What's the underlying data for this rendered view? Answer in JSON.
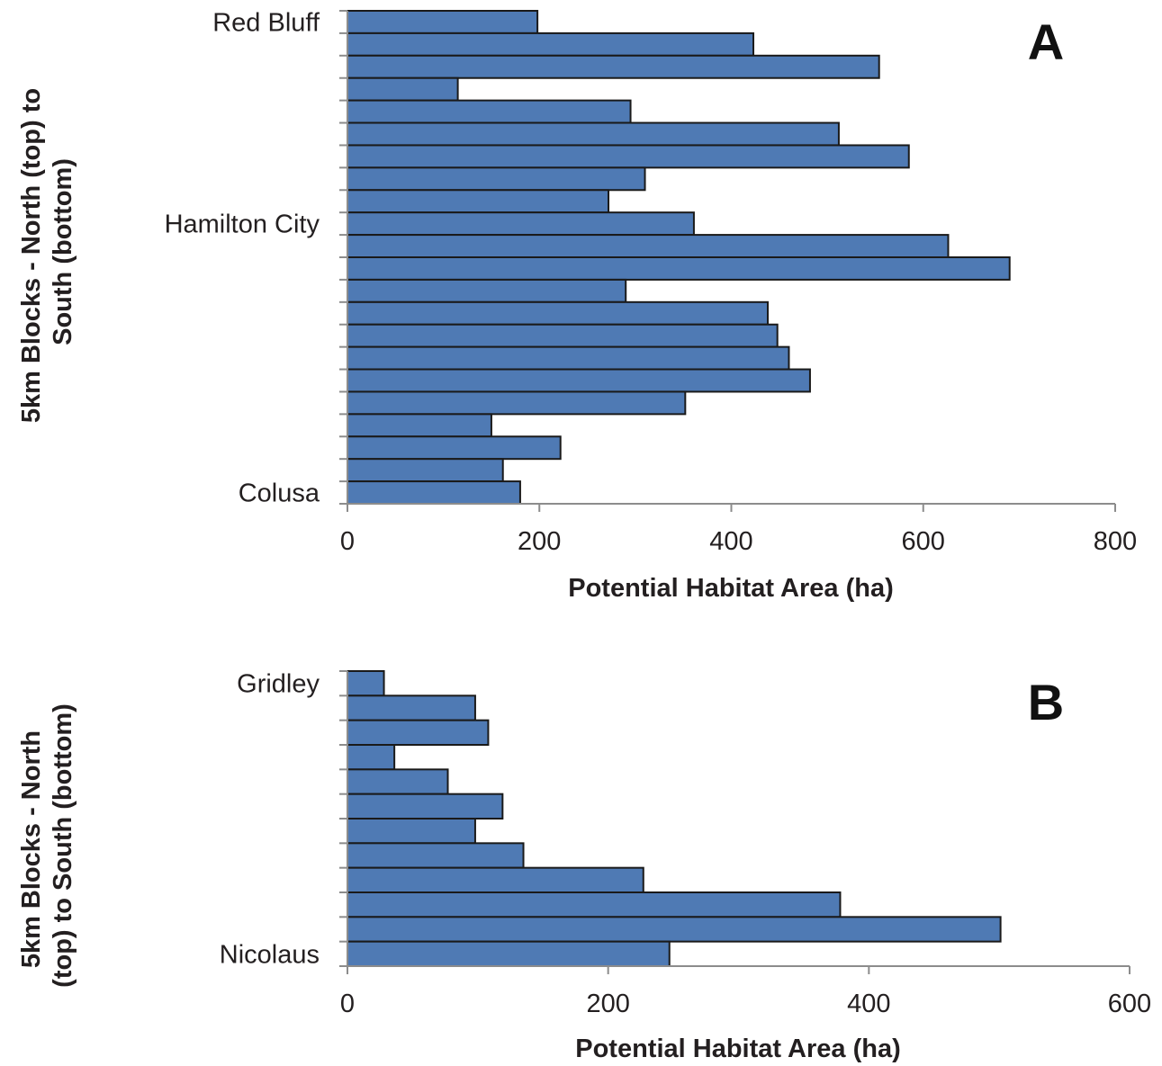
{
  "chart_data": [
    {
      "type": "bar",
      "orientation": "horizontal",
      "panel_label": "A",
      "xlabel": "Potential Habitat Area (ha)",
      "ylabel_lines": [
        "5km Blocks - North (top) to",
        "South (bottom)"
      ],
      "xlim": [
        0,
        800
      ],
      "xticks": [
        0,
        200,
        400,
        600,
        800
      ],
      "category_labels": [
        {
          "index": 0,
          "text": "Red Bluff"
        },
        {
          "index": 9,
          "text": "Hamilton City"
        },
        {
          "index": 21,
          "text": "Colusa"
        }
      ],
      "values": [
        198,
        423,
        554,
        115,
        295,
        512,
        585,
        310,
        272,
        361,
        626,
        690,
        290,
        438,
        448,
        460,
        482,
        352,
        150,
        222,
        162,
        180
      ],
      "color": "#4f7ab4",
      "grid": false
    },
    {
      "type": "bar",
      "orientation": "horizontal",
      "panel_label": "B",
      "xlabel": "Potential Habitat Area (ha)",
      "ylabel_lines": [
        "5km Blocks - North",
        "(top) to South (bottom)"
      ],
      "xlim": [
        0,
        600
      ],
      "xticks": [
        0,
        200,
        400,
        600
      ],
      "category_labels": [
        {
          "index": 0,
          "text": "Gridley"
        },
        {
          "index": 11,
          "text": "Nicolaus"
        }
      ],
      "values": [
        28,
        98,
        108,
        36,
        77,
        119,
        98,
        135,
        227,
        378,
        501,
        247
      ],
      "color": "#4f7ab4",
      "grid": false
    }
  ]
}
